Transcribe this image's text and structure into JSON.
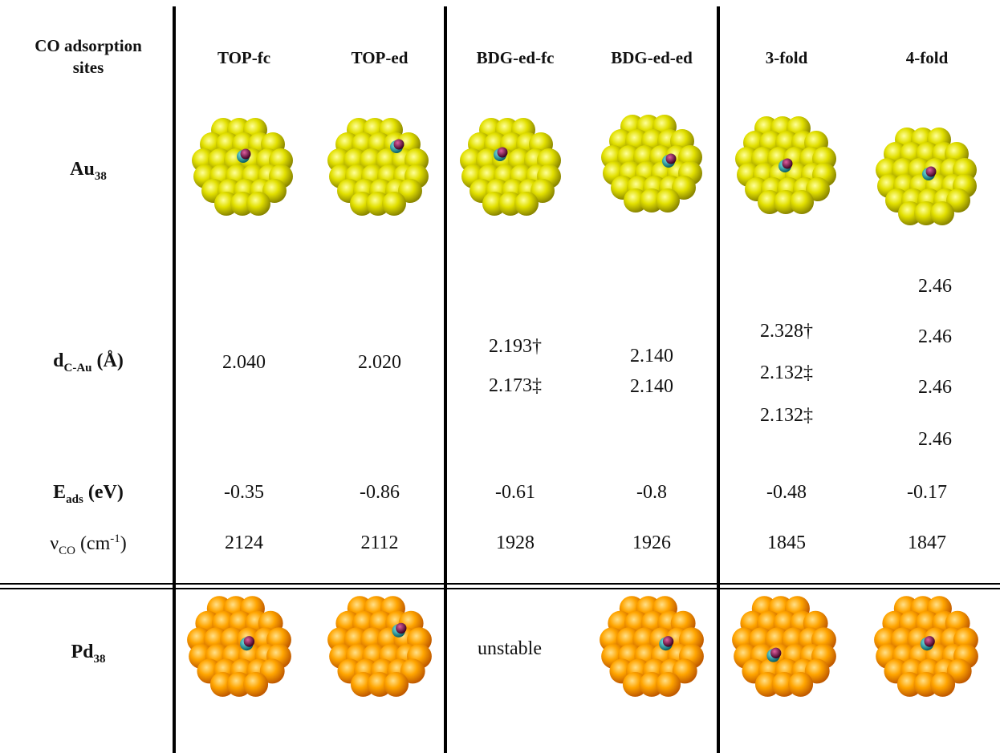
{
  "header": {
    "row_label_line1": "CO adsorption",
    "row_label_line2": "sites",
    "sites": [
      "TOP-fc",
      "TOP-ed",
      "BDG-ed-fc",
      "BDG-ed-ed",
      "3-fold",
      "4-fold"
    ]
  },
  "rows": {
    "au_label": "Au",
    "au_sub": "38",
    "dist_label": "d",
    "dist_sub": "C-Au",
    "dist_unit": "(Å)",
    "eads_label": "E",
    "eads_sub": "ads",
    "eads_unit": "(eV)",
    "freq_label": "ν",
    "freq_sub": "CO",
    "freq_unit": "(cm",
    "freq_sup": "-1",
    "freq_close": ")",
    "pd_label": "Pd",
    "pd_sub": "38"
  },
  "distances": {
    "top_fc": "2.040",
    "top_ed": "2.020",
    "bdg_ed_fc": [
      "2.193†",
      "2.173‡"
    ],
    "bdg_ed_ed": [
      "2.140",
      "2.140"
    ],
    "three_fold": [
      "2.328†",
      "2.132‡",
      "2.132‡"
    ],
    "four_fold": [
      "2.46",
      "2.46",
      "2.46",
      "2.46"
    ]
  },
  "eads": [
    "-0.35",
    "-0.86",
    "-0.61",
    "-0.8",
    "-0.48",
    "-0.17"
  ],
  "freq": [
    "2124",
    "2112",
    "1928",
    "1926",
    "1845",
    "1847"
  ],
  "pd_unstable": "unstable",
  "colors": {
    "gold": "#e2e000",
    "gold_dark": "#8a8600",
    "pd": "#ffa500",
    "pd_dark": "#c05a00",
    "carbon": "#1aa7a7",
    "oxygen": "#7a1040"
  }
}
